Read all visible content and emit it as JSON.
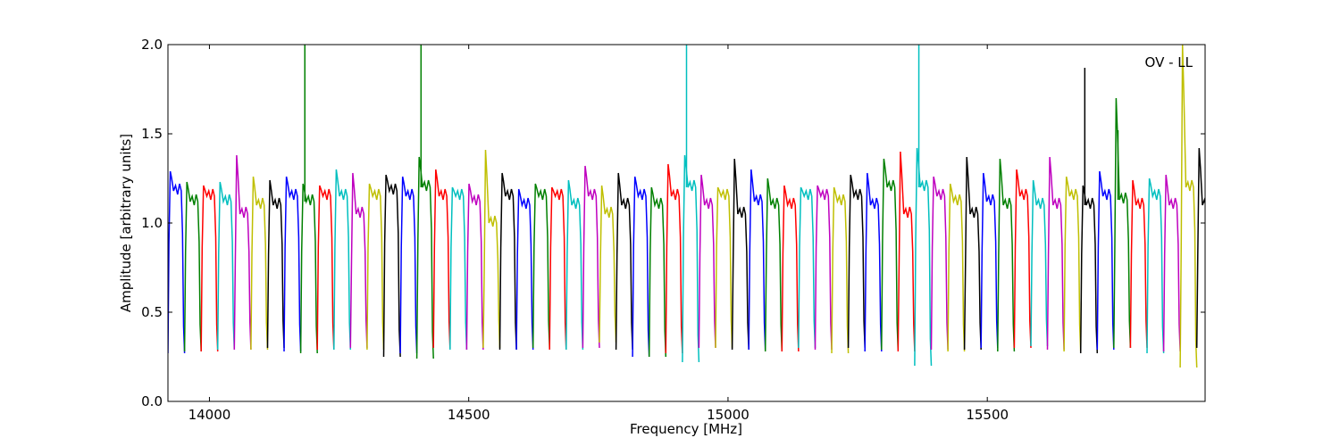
{
  "chart_data": {
    "type": "line",
    "title": "",
    "annotation": "OV - LL",
    "xlabel": "Frequency [MHz]",
    "ylabel": "Amplitude [arbitrary units]",
    "xlim": [
      13920,
      15920
    ],
    "ylim": [
      0.0,
      2.0
    ],
    "x_ticks": [
      14000,
      14500,
      15000,
      15500
    ],
    "x_tick_labels": [
      "14000",
      "14500",
      "15000",
      "15500"
    ],
    "y_ticks": [
      0.0,
      0.5,
      1.0,
      1.5,
      2.0
    ],
    "y_tick_labels": [
      "0.0",
      "0.5",
      "1.0",
      "1.5",
      "2.0"
    ],
    "grid": false,
    "legend": "none",
    "band_width_mhz": 32,
    "color_cycle": [
      "#0000ff",
      "#008000",
      "#ff0000",
      "#00bfbf",
      "#bf00bf",
      "#bfbf00",
      "#000000"
    ],
    "bands": [
      {
        "start": 13920,
        "peak": 1.29,
        "level": 1.18,
        "min": 0.27
      },
      {
        "start": 13952,
        "peak": 1.23,
        "level": 1.12,
        "min": 0.28
      },
      {
        "start": 13984,
        "peak": 1.21,
        "level": 1.15,
        "min": 0.28
      },
      {
        "start": 14016,
        "peak": 1.23,
        "level": 1.12,
        "min": 0.29
      },
      {
        "start": 14048,
        "peak": 1.38,
        "level": 1.05,
        "min": 0.29
      },
      {
        "start": 14080,
        "peak": 1.26,
        "level": 1.1,
        "min": 0.29
      },
      {
        "start": 14112,
        "peak": 1.24,
        "level": 1.1,
        "min": 0.3
      },
      {
        "start": 14144,
        "peak": 1.26,
        "level": 1.15,
        "min": 0.28
      },
      {
        "start": 14176,
        "peak": 1.22,
        "level": 1.12,
        "min": 0.27,
        "spike": 2.0
      },
      {
        "start": 14208,
        "peak": 1.21,
        "level": 1.15,
        "min": 0.29
      },
      {
        "start": 14240,
        "peak": 1.3,
        "level": 1.15,
        "min": 0.29
      },
      {
        "start": 14272,
        "peak": 1.28,
        "level": 1.05,
        "min": 0.3
      },
      {
        "start": 14304,
        "peak": 1.22,
        "level": 1.15,
        "min": 0.29
      },
      {
        "start": 14336,
        "peak": 1.27,
        "level": 1.18,
        "min": 0.25
      },
      {
        "start": 14368,
        "peak": 1.26,
        "level": 1.15,
        "min": 0.27
      },
      {
        "start": 14400,
        "peak": 1.37,
        "level": 1.2,
        "min": 0.24,
        "spike": 2.0
      },
      {
        "start": 14432,
        "peak": 1.3,
        "level": 1.15,
        "min": 0.3
      },
      {
        "start": 14464,
        "peak": 1.2,
        "level": 1.15,
        "min": 0.29
      },
      {
        "start": 14496,
        "peak": 1.22,
        "level": 1.12,
        "min": 0.29
      },
      {
        "start": 14528,
        "peak": 1.41,
        "level": 1.0,
        "min": 0.3
      },
      {
        "start": 14560,
        "peak": 1.28,
        "level": 1.15,
        "min": 0.29
      },
      {
        "start": 14592,
        "peak": 1.19,
        "level": 1.1,
        "min": 0.29
      },
      {
        "start": 14624,
        "peak": 1.22,
        "level": 1.15,
        "min": 0.3
      },
      {
        "start": 14656,
        "peak": 1.2,
        "level": 1.15,
        "min": 0.29
      },
      {
        "start": 14688,
        "peak": 1.24,
        "level": 1.1,
        "min": 0.29
      },
      {
        "start": 14720,
        "peak": 1.32,
        "level": 1.15,
        "min": 0.3
      },
      {
        "start": 14752,
        "peak": 1.21,
        "level": 1.05,
        "min": 0.33
      },
      {
        "start": 14784,
        "peak": 1.28,
        "level": 1.1,
        "min": 0.29
      },
      {
        "start": 14816,
        "peak": 1.26,
        "level": 1.15,
        "min": 0.25
      },
      {
        "start": 14848,
        "peak": 1.2,
        "level": 1.1,
        "min": 0.25
      },
      {
        "start": 14880,
        "peak": 1.33,
        "level": 1.15,
        "min": 0.27
      },
      {
        "start": 14912,
        "peak": 1.38,
        "level": 1.2,
        "min": 0.22,
        "spike": 2.0
      },
      {
        "start": 14944,
        "peak": 1.27,
        "level": 1.1,
        "min": 0.3
      },
      {
        "start": 14976,
        "peak": 1.2,
        "level": 1.15,
        "min": 0.3
      },
      {
        "start": 15008,
        "peak": 1.36,
        "level": 1.05,
        "min": 0.29
      },
      {
        "start": 15040,
        "peak": 1.3,
        "level": 1.12,
        "min": 0.29
      },
      {
        "start": 15072,
        "peak": 1.25,
        "level": 1.1,
        "min": 0.28
      },
      {
        "start": 15104,
        "peak": 1.21,
        "level": 1.1,
        "min": 0.28
      },
      {
        "start": 15136,
        "peak": 1.2,
        "level": 1.15,
        "min": 0.3
      },
      {
        "start": 15168,
        "peak": 1.21,
        "level": 1.15,
        "min": 0.29
      },
      {
        "start": 15200,
        "peak": 1.2,
        "level": 1.12,
        "min": 0.27
      },
      {
        "start": 15232,
        "peak": 1.27,
        "level": 1.15,
        "min": 0.3
      },
      {
        "start": 15264,
        "peak": 1.28,
        "level": 1.1,
        "min": 0.28
      },
      {
        "start": 15296,
        "peak": 1.36,
        "level": 1.2,
        "min": 0.29
      },
      {
        "start": 15328,
        "peak": 1.4,
        "level": 1.05,
        "min": 0.28
      },
      {
        "start": 15360,
        "peak": 1.42,
        "level": 1.2,
        "min": 0.2,
        "spike": 2.0
      },
      {
        "start": 15392,
        "peak": 1.26,
        "level": 1.15,
        "min": 0.29
      },
      {
        "start": 15424,
        "peak": 1.22,
        "level": 1.12,
        "min": 0.28
      },
      {
        "start": 15456,
        "peak": 1.37,
        "level": 1.05,
        "min": 0.29
      },
      {
        "start": 15488,
        "peak": 1.28,
        "level": 1.12,
        "min": 0.3
      },
      {
        "start": 15520,
        "peak": 1.36,
        "level": 1.1,
        "min": 0.28
      },
      {
        "start": 15552,
        "peak": 1.3,
        "level": 1.15,
        "min": 0.3
      },
      {
        "start": 15584,
        "peak": 1.24,
        "level": 1.1,
        "min": 0.31
      },
      {
        "start": 15616,
        "peak": 1.37,
        "level": 1.1,
        "min": 0.29
      },
      {
        "start": 15648,
        "peak": 1.26,
        "level": 1.15,
        "min": 0.28
      },
      {
        "start": 15680,
        "peak": 1.21,
        "level": 1.1,
        "min": 0.27,
        "spike": 1.87
      },
      {
        "start": 15712,
        "peak": 1.29,
        "level": 1.15,
        "min": 0.29
      },
      {
        "start": 15744,
        "peak": 1.7,
        "level": 1.13,
        "min": 0.3,
        "spike": 1.52
      },
      {
        "start": 15776,
        "peak": 1.24,
        "level": 1.1,
        "min": 0.3
      },
      {
        "start": 15808,
        "peak": 1.25,
        "level": 1.15,
        "min": 0.27
      },
      {
        "start": 15840,
        "peak": 1.27,
        "level": 1.1,
        "min": 0.28
      },
      {
        "start": 15872,
        "peak": 2.0,
        "level": 1.2,
        "min": 0.19
      },
      {
        "start": 15904,
        "peak": 1.42,
        "level": 1.1,
        "min": 0.3
      }
    ]
  }
}
